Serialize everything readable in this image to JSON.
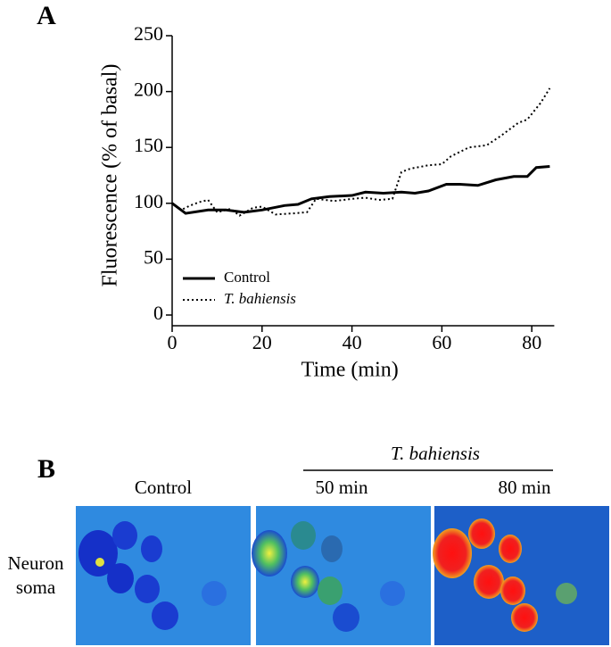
{
  "chart_data": {
    "type": "line",
    "panel_label": "A",
    "xlabel": "Time (min)",
    "ylabel": "Fluorescence (% of basal)",
    "xlim": [
      0,
      85
    ],
    "ylim": [
      0,
      250
    ],
    "xticks": [
      0,
      20,
      40,
      60,
      80
    ],
    "yticks": [
      0,
      50,
      100,
      150,
      200,
      250
    ],
    "legend": "lower left",
    "series": [
      {
        "name": "Control",
        "color": "#000000",
        "style": "solid",
        "x": [
          0,
          3,
          8,
          12,
          16,
          20,
          25,
          28,
          31,
          35,
          40,
          43,
          47,
          51,
          54,
          57,
          61,
          64,
          68,
          72,
          76,
          79,
          81,
          84
        ],
        "values": [
          100,
          91,
          94,
          94,
          92,
          94,
          98,
          99,
          104,
          106,
          107,
          110,
          109,
          110,
          109,
          111,
          117,
          117,
          116,
          121,
          124,
          124,
          132,
          133
        ]
      },
      {
        "name": "T. bahiensis",
        "color": "#000000",
        "style": "dotted",
        "x": [
          0,
          2,
          4,
          6,
          8,
          10,
          13,
          15,
          18,
          20,
          23,
          27,
          30,
          32,
          36,
          40,
          43,
          46,
          49,
          51,
          53,
          57,
          60,
          62,
          66,
          70,
          73,
          77,
          79,
          82,
          84
        ],
        "values": [
          100,
          94,
          98,
          101,
          103,
          92,
          95,
          89,
          96,
          97,
          90,
          91,
          92,
          104,
          102,
          104,
          105,
          103,
          104,
          128,
          131,
          134,
          135,
          142,
          150,
          152,
          160,
          172,
          175,
          190,
          203
        ]
      }
    ]
  },
  "panel_b": {
    "panel_label": "B",
    "treatment": "T. bahiensis",
    "columns": [
      "Control",
      "50 min",
      "80 min"
    ],
    "row_label": [
      "Neuron",
      "soma"
    ]
  }
}
